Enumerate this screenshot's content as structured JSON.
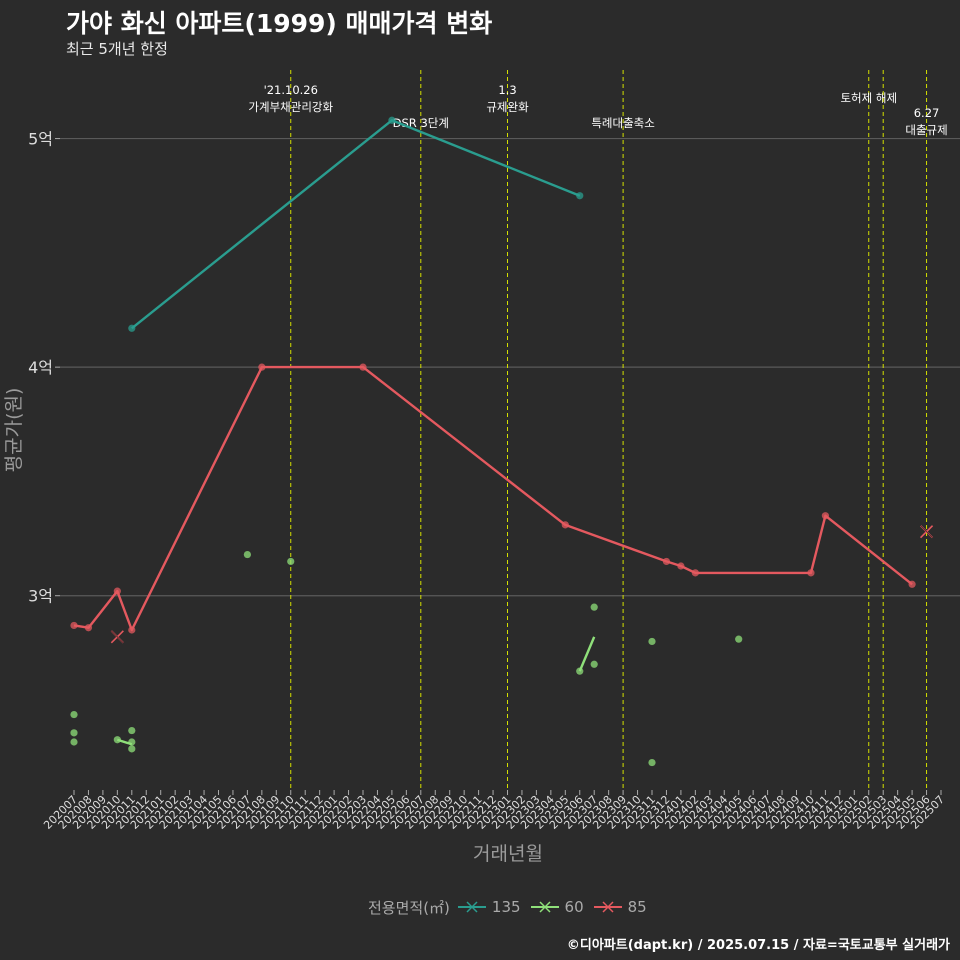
{
  "title": "가야 화신 아파트(1999) 매매가격 변화",
  "subtitle": "최근 5개년 한정",
  "caption": "©디아파트(dapt.kr) / 2025.07.15 / 자료=국토교통부 실거래가",
  "colors": {
    "background": "#2b2b2b",
    "grid": "#5a5a5a",
    "event_line": "#d4e000",
    "s135": "#2a9d8f",
    "s60": "#8fe07a",
    "s85": "#e4595f",
    "axis_text": "#9a9a9a",
    "tick_text": "#dddddd"
  },
  "chart_data": {
    "type": "line",
    "title": "가야 화신 아파트(1999) 매매가격 변화",
    "subtitle": "최근 5개년 한정",
    "xlabel": "거래년월",
    "ylabel": "평균가(원)",
    "x_categories": [
      "202007",
      "202008",
      "202009",
      "202010",
      "202011",
      "202012",
      "202101",
      "202102",
      "202103",
      "202104",
      "202105",
      "202106",
      "202107",
      "202108",
      "202109",
      "202110",
      "202111",
      "202112",
      "202201",
      "202202",
      "202203",
      "202204",
      "202205",
      "202206",
      "202207",
      "202208",
      "202209",
      "202210",
      "202211",
      "202212",
      "202301",
      "202302",
      "202303",
      "202304",
      "202305",
      "202306",
      "202307",
      "202308",
      "202309",
      "202310",
      "202311",
      "202312",
      "202401",
      "202402",
      "202403",
      "202404",
      "202405",
      "202406",
      "202407",
      "202408",
      "202409",
      "202410",
      "202411",
      "202412",
      "202501",
      "202502",
      "202503",
      "202504",
      "202505",
      "202506",
      "202507"
    ],
    "ylim": [
      2.15,
      5.3
    ],
    "yticks": [
      3,
      4,
      5
    ],
    "ytick_labels": [
      "3억",
      "4억",
      "5억"
    ],
    "legend_title": "전용면적(㎡)",
    "series": [
      {
        "name": "135",
        "line": [
          [
            "202011",
            4.17
          ],
          [
            "202205",
            5.08
          ],
          [
            "202306",
            4.75
          ]
        ],
        "points": [
          [
            "202011",
            4.17
          ],
          [
            "202205",
            5.08
          ],
          [
            "202306",
            4.75
          ]
        ],
        "cancelled": []
      },
      {
        "name": "60",
        "line": [
          [
            "202010",
            2.37
          ],
          [
            "202011",
            2.35
          ],
          [
            "202306",
            2.67
          ],
          [
            "202307",
            2.82
          ]
        ],
        "points": [
          [
            "202007",
            2.48
          ],
          [
            "202007",
            2.4
          ],
          [
            "202007",
            2.36
          ],
          [
            "202010",
            2.37
          ],
          [
            "202011",
            2.41
          ],
          [
            "202011",
            2.36
          ],
          [
            "202011",
            2.33
          ],
          [
            "202107",
            3.18
          ],
          [
            "202110",
            3.15
          ],
          [
            "202306",
            2.67
          ],
          [
            "202307",
            2.95
          ],
          [
            "202307",
            2.7
          ],
          [
            "202311",
            2.8
          ],
          [
            "202311",
            2.27
          ],
          [
            "202405",
            2.81
          ]
        ],
        "cancelled": []
      },
      {
        "name": "85",
        "line": [
          [
            "202007",
            2.87
          ],
          [
            "202008",
            2.86
          ],
          [
            "202010",
            3.02
          ],
          [
            "202011",
            2.85
          ],
          [
            "202108",
            4.0
          ],
          [
            "202203",
            4.0
          ],
          [
            "202305",
            3.31
          ],
          [
            "202312",
            3.15
          ],
          [
            "202401",
            3.13
          ],
          [
            "202402",
            3.1
          ],
          [
            "202410",
            3.1
          ],
          [
            "202411",
            3.35
          ],
          [
            "202505",
            3.05
          ]
        ],
        "points": [
          [
            "202007",
            2.87
          ],
          [
            "202008",
            2.86
          ],
          [
            "202010",
            3.02
          ],
          [
            "202011",
            2.85
          ],
          [
            "202108",
            4.0
          ],
          [
            "202203",
            4.0
          ],
          [
            "202305",
            3.31
          ],
          [
            "202312",
            3.15
          ],
          [
            "202401",
            3.13
          ],
          [
            "202402",
            3.1
          ],
          [
            "202410",
            3.1
          ],
          [
            "202411",
            3.35
          ],
          [
            "202505",
            3.05
          ]
        ],
        "cancelled": [
          [
            "202010",
            2.82
          ],
          [
            "202506",
            3.28
          ]
        ]
      }
    ],
    "events": [
      {
        "x": "202110",
        "labels": [
          "'21.10.26",
          "가계부채관리강화"
        ]
      },
      {
        "x": "202207",
        "labels": [
          "DSR 3단계"
        ]
      },
      {
        "x": "202301",
        "labels": [
          "1.3",
          "규제완화"
        ]
      },
      {
        "x": "202309",
        "labels": [
          "특례대출축소"
        ]
      },
      {
        "x": "202502",
        "labels": [
          "토허제 해제"
        ]
      },
      {
        "x": "202503",
        "labels": []
      },
      {
        "x": "202506",
        "labels": [
          "6.27",
          "대출규제"
        ]
      }
    ]
  }
}
